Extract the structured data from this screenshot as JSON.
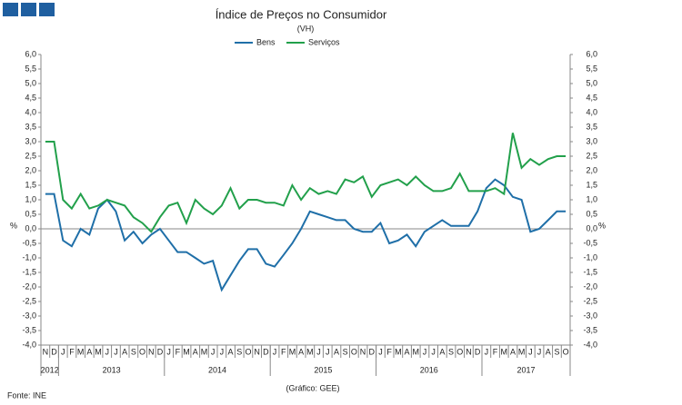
{
  "chart_data": {
    "type": "line",
    "title": "Índice de Preços no Consumidor",
    "subtitle": "(VH)",
    "y_label": "%",
    "y2_label": "%",
    "source": "Fonte: INE",
    "credit": "(Gráfico: GEE)",
    "categories": [
      "N",
      "D",
      "J",
      "F",
      "M",
      "A",
      "M",
      "J",
      "J",
      "A",
      "S",
      "O",
      "N",
      "D",
      "J",
      "F",
      "M",
      "A",
      "M",
      "J",
      "J",
      "A",
      "S",
      "O",
      "N",
      "D",
      "J",
      "F",
      "M",
      "A",
      "M",
      "J",
      "J",
      "A",
      "S",
      "O",
      "N",
      "D",
      "J",
      "F",
      "M",
      "A",
      "M",
      "J",
      "J",
      "A",
      "S",
      "O",
      "N",
      "D",
      "J",
      "F",
      "M",
      "A",
      "M",
      "J",
      "J",
      "A",
      "S",
      "O"
    ],
    "x_groups": [
      "2012",
      null,
      "2013",
      null,
      null,
      null,
      null,
      null,
      null,
      null,
      null,
      null,
      null,
      null,
      "2014",
      null,
      null,
      null,
      null,
      null,
      null,
      null,
      null,
      null,
      null,
      null,
      "2015",
      null,
      null,
      null,
      null,
      null,
      null,
      null,
      null,
      null,
      null,
      null,
      "2016",
      null,
      null,
      null,
      null,
      null,
      null,
      null,
      null,
      null,
      null,
      null,
      "2017",
      null,
      null,
      null,
      null,
      null,
      null,
      null,
      null,
      null
    ],
    "series": [
      {
        "name": "Bens",
        "color": "#1f6fa8",
        "values": [
          1.2,
          1.2,
          -0.4,
          -0.6,
          0.0,
          -0.2,
          0.7,
          1.0,
          0.6,
          -0.4,
          -0.1,
          -0.5,
          -0.2,
          0.0,
          -0.4,
          -0.8,
          -0.8,
          -1.0,
          -1.2,
          -1.1,
          -2.1,
          -1.6,
          -1.1,
          -0.7,
          -0.7,
          -1.2,
          -1.3,
          -0.9,
          -0.5,
          0.0,
          0.6,
          0.5,
          0.4,
          0.3,
          0.3,
          0.0,
          -0.1,
          -0.1,
          0.2,
          -0.5,
          -0.4,
          -0.2,
          -0.6,
          -0.1,
          0.1,
          0.3,
          0.1,
          0.1,
          0.1,
          0.6,
          1.4,
          1.7,
          1.5,
          1.1,
          1.0,
          -0.1,
          0.0,
          0.3,
          0.6,
          0.6
        ]
      },
      {
        "name": "Serviços",
        "color": "#22a04b",
        "values": [
          3.0,
          3.0,
          1.0,
          0.7,
          1.2,
          0.7,
          0.8,
          1.0,
          0.9,
          0.8,
          0.4,
          0.2,
          -0.1,
          0.4,
          0.8,
          0.9,
          0.2,
          1.0,
          0.7,
          0.5,
          0.8,
          1.4,
          0.7,
          1.0,
          1.0,
          0.9,
          0.9,
          0.8,
          1.5,
          1.0,
          1.4,
          1.2,
          1.3,
          1.2,
          1.7,
          1.6,
          1.8,
          1.1,
          1.5,
          1.6,
          1.7,
          1.5,
          1.8,
          1.5,
          1.3,
          1.3,
          1.4,
          1.9,
          1.3,
          1.3,
          1.3,
          1.4,
          1.2,
          3.3,
          2.1,
          2.4,
          2.2,
          2.4,
          2.5,
          2.5
        ]
      }
    ],
    "ylim": [
      -4,
      6
    ],
    "yticks": [
      {
        "value": 6,
        "label": "6,0"
      },
      {
        "value": 5.5,
        "label": "5,5"
      },
      {
        "value": 5,
        "label": "5,0"
      },
      {
        "value": 4.5,
        "label": "4,5"
      },
      {
        "value": 4,
        "label": "4,0"
      },
      {
        "value": 3.5,
        "label": "3,5"
      },
      {
        "value": 3,
        "label": "3,0"
      },
      {
        "value": 2.5,
        "label": "2,5"
      },
      {
        "value": 2,
        "label": "2,0"
      },
      {
        "value": 1.5,
        "label": "1,5"
      },
      {
        "value": 1,
        "label": "1,0"
      },
      {
        "value": 0.5,
        "label": "0,5"
      },
      {
        "value": 0,
        "label": "0,0"
      },
      {
        "value": -0.5,
        "label": "-0,5"
      },
      {
        "value": -1,
        "label": "-1,0"
      },
      {
        "value": -1.5,
        "label": "-1,5"
      },
      {
        "value": -2,
        "label": "-2,0"
      },
      {
        "value": -2.5,
        "label": "-2,5"
      },
      {
        "value": -3,
        "label": "-3,0"
      },
      {
        "value": -3.5,
        "label": "-3,5"
      },
      {
        "value": -4,
        "label": "-4,0"
      }
    ],
    "y2lim": [
      -4,
      6
    ],
    "y2ticks": [
      {
        "value": 6,
        "label": "6,0"
      },
      {
        "value": 5.5,
        "label": "5,5"
      },
      {
        "value": 5,
        "label": "5,0"
      },
      {
        "value": 4.5,
        "label": "4,5"
      },
      {
        "value": 4,
        "label": "4,0"
      },
      {
        "value": 3.5,
        "label": "3,5"
      },
      {
        "value": 3,
        "label": "3,0"
      },
      {
        "value": 2.5,
        "label": "2,5"
      },
      {
        "value": 2,
        "label": "2,0"
      },
      {
        "value": 1.5,
        "label": "1,5"
      },
      {
        "value": 1,
        "label": "1,0"
      },
      {
        "value": 0.5,
        "label": "0,5"
      },
      {
        "value": 0,
        "label": "0,0"
      },
      {
        "value": -0.5,
        "label": "-0,5"
      },
      {
        "value": -1,
        "label": "-1,0"
      },
      {
        "value": -1.5,
        "label": "-1,5"
      },
      {
        "value": -2,
        "label": "-2,0"
      },
      {
        "value": -2.5,
        "label": "-2,5"
      },
      {
        "value": -3,
        "label": "-3,0"
      },
      {
        "value": -3.5,
        "label": "-3,5"
      },
      {
        "value": -4,
        "label": "-4,0"
      }
    ],
    "grid": false
  }
}
